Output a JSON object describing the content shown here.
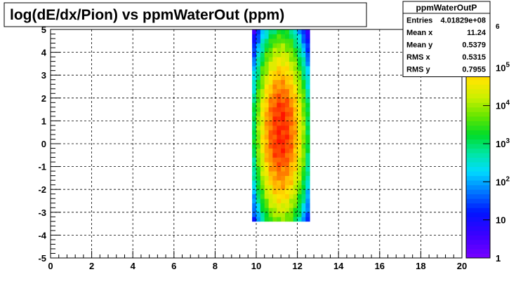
{
  "chart_data": {
    "type": "heatmap",
    "title": "log(dE/dx/Pion) vs ppmWaterOut (ppm)",
    "xlabel": "",
    "ylabel": "",
    "xlim": [
      0,
      20
    ],
    "ylim": [
      -5,
      5
    ],
    "x_ticks": [
      "0",
      "2",
      "4",
      "6",
      "8",
      "10",
      "12",
      "14",
      "16",
      "18",
      "20"
    ],
    "y_ticks": [
      "-5",
      "-4",
      "-3",
      "-2",
      "-1",
      "0",
      "1",
      "2",
      "3",
      "4",
      "5"
    ],
    "grid": true,
    "z_scale": "log",
    "colorbar": {
      "min": 1,
      "max": 1000000,
      "labels": [
        {
          "value": 1,
          "text": "1"
        },
        {
          "value": 10,
          "text": "10"
        },
        {
          "value": 100,
          "text": "10",
          "sup": "2"
        },
        {
          "value": 1000,
          "text": "10",
          "sup": "3"
        },
        {
          "value": 10000,
          "text": "10",
          "sup": "4"
        },
        {
          "value": 100000,
          "text": "10",
          "sup": "5"
        },
        {
          "value": 1000000,
          "text": "",
          "sup": "6"
        }
      ]
    },
    "distribution": {
      "x_range": [
        9.8,
        12.6
      ],
      "y_range": [
        -3.4,
        5.0
      ],
      "x_bin_width": 0.2,
      "y_bin_width": 0.2,
      "peak_count": 600000,
      "peaks": [
        {
          "x": 11.2,
          "y": 0.0
        },
        {
          "x": 11.2,
          "y": 1.4
        }
      ]
    },
    "stats": {
      "name": "ppmWaterOutP",
      "rows": [
        {
          "label": "Entries",
          "value": "4.01829e+08"
        },
        {
          "label": "Mean x",
          "value": "11.24"
        },
        {
          "label": "Mean y",
          "value": "0.5379"
        },
        {
          "label": "RMS x",
          "value": "0.5315"
        },
        {
          "label": "RMS y",
          "value": "0.7955"
        }
      ]
    }
  }
}
